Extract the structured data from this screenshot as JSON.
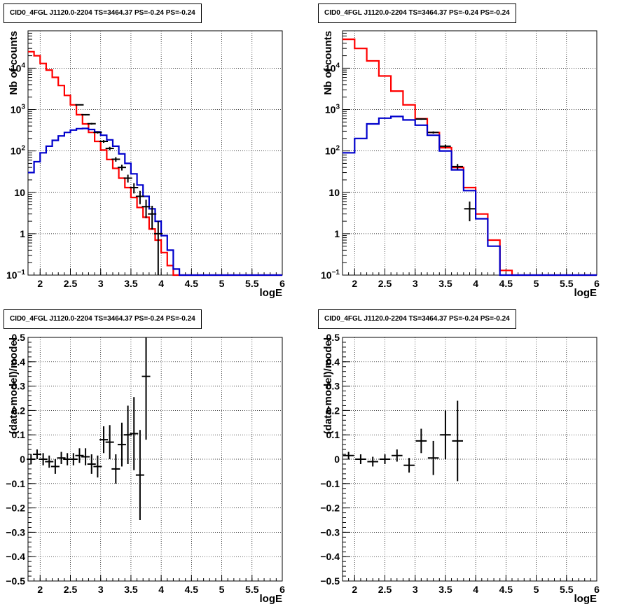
{
  "chart_data": [
    {
      "id": "top-left",
      "type": "histogram-step",
      "title": "CID0_4FGL J1120.0-2204 TS=3464.37 PS=-0.24 PS=-0.24",
      "xlabel": "logE",
      "ylabel": "Nb of counts",
      "xlim": [
        1.8,
        6.0
      ],
      "ylim": [
        0.1,
        80000
      ],
      "yscale": "log",
      "xticks": [
        "2",
        "2.5",
        "3",
        "3.5",
        "4",
        "4.5",
        "5",
        "5.5",
        "6"
      ],
      "yticks": [
        "10^-1",
        "1",
        "10",
        "10^2",
        "10^3",
        "10^4"
      ],
      "grid": true,
      "bin_edges": [
        1.8,
        1.9,
        2.0,
        2.1,
        2.2,
        2.3,
        2.4,
        2.5,
        2.6,
        2.7,
        2.8,
        2.9,
        3.0,
        3.1,
        3.2,
        3.3,
        3.4,
        3.5,
        3.6,
        3.7,
        3.8,
        3.9,
        4.0,
        4.1,
        4.2,
        4.3,
        4.4,
        4.5,
        4.6,
        4.7,
        4.8,
        4.9,
        5.0,
        5.1,
        5.2,
        5.3,
        5.4,
        5.5,
        5.6,
        5.7,
        5.8,
        5.9,
        6.0
      ],
      "series": [
        {
          "color": "#ff0000",
          "values": [
            25000,
            20000,
            13000,
            9000,
            6000,
            3800,
            2200,
            1300,
            750,
            450,
            280,
            170,
            105,
            62,
            38,
            22,
            13,
            7.5,
            4.3,
            2.5,
            1.3,
            0.7,
            0.35,
            0.17,
            0.1,
            0.1,
            0.1,
            0.1,
            0.1,
            0.1,
            0.1,
            0.1,
            0.1,
            0.1,
            0.1,
            0.1,
            0.1,
            0.1,
            0.1,
            0.1,
            0.1,
            0.1
          ]
        },
        {
          "color": "#0000cc",
          "values": [
            30,
            55,
            90,
            130,
            180,
            230,
            280,
            320,
            345,
            350,
            330,
            290,
            240,
            185,
            130,
            85,
            50,
            28,
            15,
            8,
            4,
            2,
            0.9,
            0.4,
            0.14,
            0.1,
            0.1,
            0.1,
            0.1,
            0.1,
            0.1,
            0.1,
            0.1,
            0.1,
            0.1,
            0.1,
            0.1,
            0.1,
            0.1,
            0.1,
            0.1,
            0.1
          ]
        }
      ],
      "points": [
        {
          "x": 2.65,
          "y": 1300
        },
        {
          "x": 2.75,
          "y": 750
        },
        {
          "x": 2.85,
          "y": 455
        },
        {
          "x": 2.95,
          "y": 280
        },
        {
          "x": 3.05,
          "y": 170
        },
        {
          "x": 3.15,
          "y": 115
        },
        {
          "x": 3.25,
          "y": 63
        },
        {
          "x": 3.35,
          "y": 40
        },
        {
          "x": 3.45,
          "y": 22
        },
        {
          "x": 3.55,
          "y": 13
        },
        {
          "x": 3.65,
          "y": 8
        },
        {
          "x": 3.75,
          "y": 4.5
        },
        {
          "x": 3.85,
          "y": 3.0
        },
        {
          "x": 3.95,
          "y": 1.0
        }
      ]
    },
    {
      "id": "top-right",
      "type": "histogram-step",
      "title": "CID0_4FGL J1120.0-2204 TS=3464.37 PS=-0.24 PS=-0.24",
      "xlabel": "logE",
      "ylabel": "Nb of counts",
      "xlim": [
        1.8,
        6.0
      ],
      "ylim": [
        0.1,
        80000
      ],
      "yscale": "log",
      "xticks": [
        "2",
        "2.5",
        "3",
        "3.5",
        "4",
        "4.5",
        "5",
        "5.5",
        "6"
      ],
      "yticks": [
        "10^-1",
        "1",
        "10",
        "10^2",
        "10^3",
        "10^4"
      ],
      "grid": true,
      "bin_edges": [
        1.8,
        2.0,
        2.2,
        2.4,
        2.6,
        2.8,
        3.0,
        3.2,
        3.4,
        3.6,
        3.8,
        4.0,
        4.2,
        4.4,
        4.6,
        4.8,
        5.0,
        5.2,
        5.4,
        5.6,
        5.8,
        6.0
      ],
      "series": [
        {
          "color": "#ff0000",
          "values": [
            50000,
            30000,
            15000,
            6500,
            2800,
            1300,
            600,
            280,
            120,
            40,
            13,
            3,
            0.7,
            0.13,
            0.1,
            0.1,
            0.1,
            0.1,
            0.1,
            0.1,
            0.1
          ]
        },
        {
          "color": "#0000cc",
          "values": [
            90,
            200,
            450,
            620,
            680,
            560,
            420,
            240,
            100,
            35,
            11,
            2.3,
            0.5,
            0.1,
            0.1,
            0.1,
            0.1,
            0.1,
            0.1,
            0.1,
            0.1
          ]
        }
      ],
      "points": [
        {
          "x": 3.1,
          "y": 590
        },
        {
          "x": 3.3,
          "y": 280
        },
        {
          "x": 3.5,
          "y": 130
        },
        {
          "x": 3.7,
          "y": 42
        },
        {
          "x": 3.9,
          "y": 4.0
        }
      ]
    },
    {
      "id": "bottom-left",
      "type": "scatter-errorbars",
      "title": "CID0_4FGL J1120.0-2204 TS=3464.37 PS=-0.24 PS=-0.24",
      "xlabel": "logE",
      "ylabel": "(data-model)/model",
      "xlim": [
        1.8,
        6.0
      ],
      "ylim": [
        -0.5,
        0.5
      ],
      "xticks": [
        "2",
        "2.5",
        "3",
        "3.5",
        "4",
        "4.5",
        "5",
        "5.5",
        "6"
      ],
      "yticks": [
        "−0.5",
        "−0.4",
        "−0.3",
        "−0.2",
        "−0.1",
        "0",
        "0.1",
        "0.2",
        "0.3",
        "0.4",
        "0.5"
      ],
      "grid": true,
      "points": [
        {
          "x": 1.85,
          "y": 0.0,
          "err": 0.02
        },
        {
          "x": 1.95,
          "y": 0.02,
          "err": 0.02
        },
        {
          "x": 2.05,
          "y": 0.0,
          "err": 0.025
        },
        {
          "x": 2.15,
          "y": -0.01,
          "err": 0.025
        },
        {
          "x": 2.25,
          "y": -0.03,
          "err": 0.03
        },
        {
          "x": 2.35,
          "y": 0.005,
          "err": 0.025
        },
        {
          "x": 2.45,
          "y": 0.0,
          "err": 0.025
        },
        {
          "x": 2.55,
          "y": 0.0,
          "err": 0.025
        },
        {
          "x": 2.65,
          "y": 0.015,
          "err": 0.03
        },
        {
          "x": 2.75,
          "y": 0.01,
          "err": 0.035
        },
        {
          "x": 2.85,
          "y": -0.02,
          "err": 0.04
        },
        {
          "x": 2.95,
          "y": -0.03,
          "err": 0.045
        },
        {
          "x": 3.05,
          "y": 0.08,
          "err": 0.055
        },
        {
          "x": 3.15,
          "y": 0.07,
          "err": 0.07
        },
        {
          "x": 3.25,
          "y": -0.04,
          "err": 0.06
        },
        {
          "x": 3.35,
          "y": 0.06,
          "err": 0.09
        },
        {
          "x": 3.45,
          "y": 0.1,
          "err": 0.12
        },
        {
          "x": 3.55,
          "y": 0.105,
          "err": 0.15
        },
        {
          "x": 3.65,
          "y": -0.065,
          "err": 0.185
        },
        {
          "x": 3.75,
          "y": 0.34,
          "err": 0.26
        }
      ]
    },
    {
      "id": "bottom-right",
      "type": "scatter-errorbars",
      "title": "CID0_4FGL J1120.0-2204 TS=3464.37 PS=-0.24 PS=-0.24",
      "xlabel": "logE",
      "ylabel": "(data-model)/model",
      "xlim": [
        1.8,
        6.0
      ],
      "ylim": [
        -0.5,
        0.5
      ],
      "xticks": [
        "2",
        "2.5",
        "3",
        "3.5",
        "4",
        "4.5",
        "5",
        "5.5",
        "6"
      ],
      "yticks": [
        "−0.5",
        "−0.4",
        "−0.3",
        "−0.2",
        "−0.1",
        "0",
        "0.1",
        "0.2",
        "0.3",
        "0.4",
        "0.5"
      ],
      "grid": true,
      "points": [
        {
          "x": 1.9,
          "y": 0.015,
          "err": 0.015
        },
        {
          "x": 2.1,
          "y": 0.0,
          "err": 0.02
        },
        {
          "x": 2.3,
          "y": -0.01,
          "err": 0.02
        },
        {
          "x": 2.5,
          "y": 0.0,
          "err": 0.02
        },
        {
          "x": 2.7,
          "y": 0.015,
          "err": 0.025
        },
        {
          "x": 2.9,
          "y": -0.025,
          "err": 0.03
        },
        {
          "x": 3.1,
          "y": 0.075,
          "err": 0.05
        },
        {
          "x": 3.3,
          "y": 0.005,
          "err": 0.07
        },
        {
          "x": 3.5,
          "y": 0.1,
          "err": 0.1
        },
        {
          "x": 3.7,
          "y": 0.075,
          "err": 0.165
        }
      ]
    }
  ]
}
